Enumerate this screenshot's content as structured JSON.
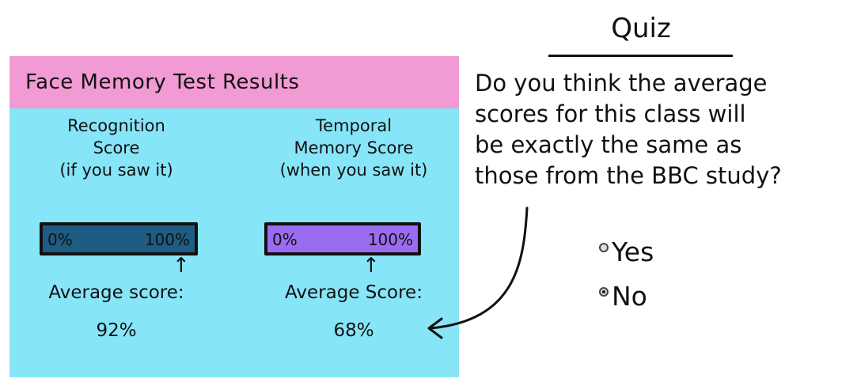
{
  "panel": {
    "title": "Face Memory Test Results",
    "recognition": {
      "title_lines": [
        "Recognition",
        "Score",
        "(if you saw it)"
      ],
      "bar_min": "0%",
      "bar_max": "100%",
      "arrow": "↑",
      "avg_label": "Average score:",
      "avg_value": "92%",
      "percent": 0.92,
      "color": "#1e5c84"
    },
    "temporal": {
      "title_lines": [
        "Temporal",
        "Memory Score",
        "(when you saw it)"
      ],
      "bar_min": "0%",
      "bar_max": "100%",
      "arrow": "↑",
      "avg_label": "Average Score:",
      "avg_value": "68%",
      "percent": 0.68,
      "color": "#9a6cf1"
    },
    "colors": {
      "header": "#f19ad4",
      "body": "#87e5f8"
    }
  },
  "quiz": {
    "title": "Quiz",
    "question_lines": [
      "Do you think the average",
      "scores for this class will",
      "be exactly the same as",
      "those from the BBC study?"
    ],
    "options": [
      {
        "label": "Yes",
        "selected": false
      },
      {
        "label": "No",
        "selected": true
      }
    ]
  }
}
